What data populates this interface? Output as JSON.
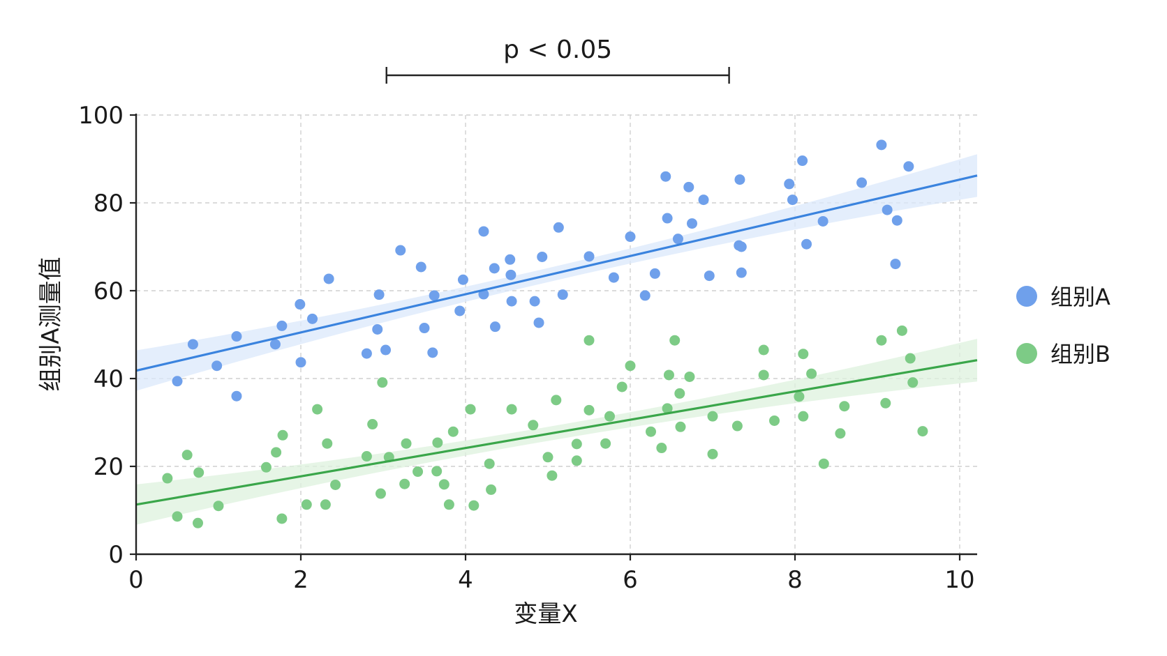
{
  "chart_data": {
    "type": "scatter",
    "xlabel": "变量X",
    "ylabel": "组别A测量值",
    "xlim": [
      0,
      10.2
    ],
    "ylim": [
      0,
      100
    ],
    "xticks": [
      "0",
      "2",
      "4",
      "6",
      "8",
      "10"
    ],
    "yticks": [
      "0",
      "20",
      "40",
      "60",
      "80",
      "100"
    ],
    "grid": true,
    "legend_position": "right",
    "annotation": {
      "text": "p < 0.05",
      "x_range": [
        3.04,
        7.2
      ]
    },
    "series": [
      {
        "name": "组别A",
        "color": "#6fa0eb",
        "line_color": "#3a83de",
        "band_color": "#dbe8fb",
        "fit": {
          "intercept": 41.8,
          "slope": 4.35
        },
        "points": [
          [
            0.5,
            39.4
          ],
          [
            0.69,
            47.8
          ],
          [
            0.98,
            42.9
          ],
          [
            1.22,
            36.0
          ],
          [
            1.22,
            49.6
          ],
          [
            1.69,
            47.8
          ],
          [
            1.77,
            52.0
          ],
          [
            2.0,
            43.7
          ],
          [
            1.99,
            56.9
          ],
          [
            2.14,
            53.6
          ],
          [
            2.34,
            62.7
          ],
          [
            2.8,
            45.7
          ],
          [
            2.93,
            51.2
          ],
          [
            2.95,
            59.1
          ],
          [
            3.03,
            46.5
          ],
          [
            3.21,
            69.2
          ],
          [
            3.46,
            65.4
          ],
          [
            3.5,
            51.5
          ],
          [
            3.6,
            45.9
          ],
          [
            3.62,
            58.9
          ],
          [
            3.93,
            55.4
          ],
          [
            3.97,
            62.5
          ],
          [
            4.22,
            59.2
          ],
          [
            4.22,
            73.5
          ],
          [
            4.35,
            65.1
          ],
          [
            4.36,
            51.8
          ],
          [
            4.54,
            67.1
          ],
          [
            4.55,
            63.6
          ],
          [
            4.56,
            57.6
          ],
          [
            4.84,
            57.6
          ],
          [
            4.89,
            52.7
          ],
          [
            4.93,
            67.7
          ],
          [
            5.13,
            74.4
          ],
          [
            5.18,
            59.1
          ],
          [
            5.5,
            67.8
          ],
          [
            5.8,
            63.0
          ],
          [
            6.0,
            72.3
          ],
          [
            6.18,
            58.9
          ],
          [
            6.3,
            63.9
          ],
          [
            6.43,
            86.0
          ],
          [
            6.45,
            76.5
          ],
          [
            6.58,
            71.8
          ],
          [
            6.71,
            83.6
          ],
          [
            6.75,
            75.3
          ],
          [
            6.89,
            80.7
          ],
          [
            6.96,
            63.4
          ],
          [
            7.32,
            70.3
          ],
          [
            7.33,
            85.3
          ],
          [
            7.35,
            64.1
          ],
          [
            7.35,
            70.0
          ],
          [
            7.93,
            84.3
          ],
          [
            7.97,
            80.7
          ],
          [
            8.09,
            89.6
          ],
          [
            8.14,
            70.6
          ],
          [
            8.34,
            75.8
          ],
          [
            8.81,
            84.6
          ],
          [
            9.05,
            93.2
          ],
          [
            9.12,
            78.4
          ],
          [
            9.22,
            66.1
          ],
          [
            9.24,
            76.0
          ],
          [
            9.38,
            88.3
          ]
        ]
      },
      {
        "name": "组别B",
        "color": "#7dcb86",
        "line_color": "#3aa64a",
        "band_color": "#ddf1de",
        "fit": {
          "intercept": 11.3,
          "slope": 3.22
        },
        "points": [
          [
            0.38,
            17.3
          ],
          [
            0.5,
            8.6
          ],
          [
            0.62,
            22.6
          ],
          [
            0.75,
            7.1
          ],
          [
            0.76,
            18.6
          ],
          [
            1.0,
            11.0
          ],
          [
            1.58,
            19.8
          ],
          [
            1.7,
            23.2
          ],
          [
            1.77,
            8.1
          ],
          [
            1.78,
            27.1
          ],
          [
            2.07,
            11.3
          ],
          [
            2.2,
            33.0
          ],
          [
            2.3,
            11.3
          ],
          [
            2.32,
            25.2
          ],
          [
            2.42,
            15.8
          ],
          [
            2.8,
            22.3
          ],
          [
            2.87,
            29.6
          ],
          [
            2.97,
            13.8
          ],
          [
            2.99,
            39.1
          ],
          [
            3.07,
            22.1
          ],
          [
            3.26,
            16.0
          ],
          [
            3.28,
            25.2
          ],
          [
            3.42,
            18.8
          ],
          [
            3.66,
            25.4
          ],
          [
            3.65,
            18.9
          ],
          [
            3.74,
            15.9
          ],
          [
            3.8,
            11.3
          ],
          [
            3.85,
            27.9
          ],
          [
            4.06,
            33.0
          ],
          [
            4.1,
            11.1
          ],
          [
            4.29,
            20.6
          ],
          [
            4.31,
            14.7
          ],
          [
            4.56,
            33.0
          ],
          [
            4.82,
            29.4
          ],
          [
            5.0,
            22.1
          ],
          [
            5.05,
            17.9
          ],
          [
            5.1,
            35.1
          ],
          [
            5.35,
            25.1
          ],
          [
            5.35,
            21.3
          ],
          [
            5.5,
            48.7
          ],
          [
            5.5,
            32.8
          ],
          [
            5.7,
            25.2
          ],
          [
            5.75,
            31.4
          ],
          [
            5.9,
            38.1
          ],
          [
            6.0,
            42.9
          ],
          [
            6.25,
            27.9
          ],
          [
            6.38,
            24.2
          ],
          [
            6.45,
            33.2
          ],
          [
            6.47,
            40.8
          ],
          [
            6.54,
            48.7
          ],
          [
            6.6,
            36.6
          ],
          [
            6.61,
            29.0
          ],
          [
            6.72,
            40.4
          ],
          [
            7.0,
            31.4
          ],
          [
            7.0,
            22.8
          ],
          [
            7.3,
            29.2
          ],
          [
            7.62,
            46.5
          ],
          [
            7.62,
            40.8
          ],
          [
            7.75,
            30.4
          ],
          [
            8.05,
            35.9
          ],
          [
            8.1,
            45.6
          ],
          [
            8.1,
            31.4
          ],
          [
            8.2,
            41.1
          ],
          [
            8.35,
            20.6
          ],
          [
            8.55,
            27.5
          ],
          [
            8.6,
            33.7
          ],
          [
            9.05,
            48.7
          ],
          [
            9.1,
            34.4
          ],
          [
            9.3,
            50.9
          ],
          [
            9.4,
            44.6
          ],
          [
            9.43,
            39.1
          ],
          [
            9.55,
            28.0
          ]
        ]
      }
    ]
  }
}
